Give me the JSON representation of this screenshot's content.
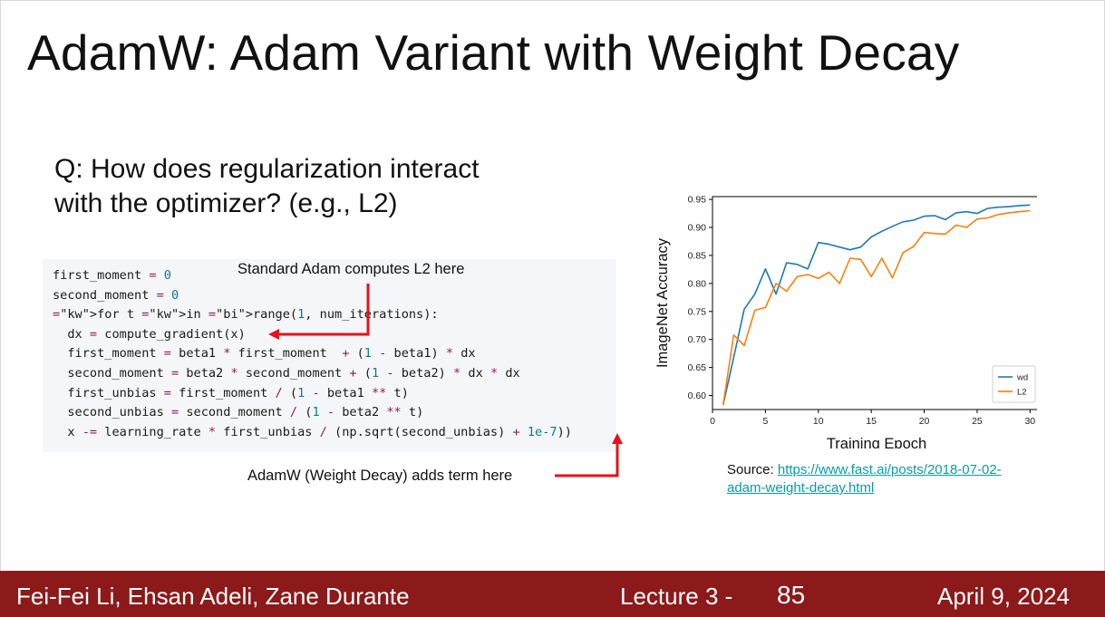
{
  "slide": {
    "title": "AdamW: Adam Variant with Weight Decay",
    "question_line1": "Q: How does regularization interact",
    "question_line2": "with the optimizer? (e.g., L2)"
  },
  "code": {
    "lines": [
      "first_moment = 0",
      "second_moment = 0",
      "for t in range(1, num_iterations):",
      "  dx = compute_gradient(x)",
      "  first_moment = beta1 * first_moment  + (1 - beta1) * dx",
      "  second_moment = beta2 * second_moment + (1 - beta2) * dx * dx",
      "  first_unbias = first_moment / (1 - beta1 ** t)",
      "  second_unbias = second_moment / (1 - beta2 ** t)",
      "  x -= learning_rate * first_unbias / (np.sqrt(second_unbias) + 1e-7))"
    ]
  },
  "annotations": {
    "top": "Standard Adam computes L2 here",
    "bottom": "AdamW (Weight Decay) adds term here",
    "arrow_color": "#e8101a"
  },
  "source": {
    "label": "Source: ",
    "link_line1": "https://www.fast.ai/posts/2018-07-02-",
    "link_line2": "adam-weight-decay.html"
  },
  "footer": {
    "authors": "Fei-Fei Li, Ehsan Adeli, Zane Durante",
    "lecture": "Lecture 3 -",
    "page": "85",
    "date": "April 9, 2024",
    "bg_color": "#8c1a1a"
  },
  "chart_data": {
    "type": "line",
    "xlabel": "Training Epoch",
    "ylabel": "ImageNet Accuracy",
    "xlim": [
      0,
      31
    ],
    "ylim": [
      0.575,
      0.955
    ],
    "xticks": [
      0,
      5,
      10,
      15,
      20,
      25,
      30
    ],
    "yticks": [
      0.6,
      0.65,
      0.7,
      0.75,
      0.8,
      0.85,
      0.9,
      0.95
    ],
    "grid": false,
    "legend_position": "bottom-right",
    "series": [
      {
        "name": "wd",
        "color": "#1f77b4",
        "x": [
          1,
          2,
          3,
          4,
          5,
          6,
          7,
          8,
          9,
          10,
          11,
          12,
          13,
          14,
          15,
          16,
          17,
          18,
          19,
          20,
          21,
          22,
          23,
          24,
          25,
          26,
          27,
          28,
          29,
          30
        ],
        "values": [
          0.583,
          0.668,
          0.754,
          0.781,
          0.826,
          0.781,
          0.837,
          0.834,
          0.826,
          0.873,
          0.87,
          0.865,
          0.86,
          0.865,
          0.883,
          0.893,
          0.902,
          0.91,
          0.913,
          0.92,
          0.921,
          0.914,
          0.926,
          0.928,
          0.925,
          0.934,
          0.936,
          0.937,
          0.939,
          0.94
        ]
      },
      {
        "name": "L2",
        "color": "#ff7f0e",
        "x": [
          1,
          2,
          3,
          4,
          5,
          6,
          7,
          8,
          9,
          10,
          11,
          12,
          13,
          14,
          15,
          16,
          17,
          18,
          19,
          20,
          21,
          22,
          23,
          24,
          25,
          26,
          27,
          28,
          29,
          30
        ],
        "values": [
          0.583,
          0.708,
          0.689,
          0.752,
          0.757,
          0.8,
          0.786,
          0.812,
          0.816,
          0.809,
          0.82,
          0.8,
          0.845,
          0.843,
          0.812,
          0.845,
          0.81,
          0.855,
          0.866,
          0.891,
          0.889,
          0.888,
          0.904,
          0.9,
          0.915,
          0.917,
          0.923,
          0.926,
          0.928,
          0.93
        ]
      }
    ]
  }
}
